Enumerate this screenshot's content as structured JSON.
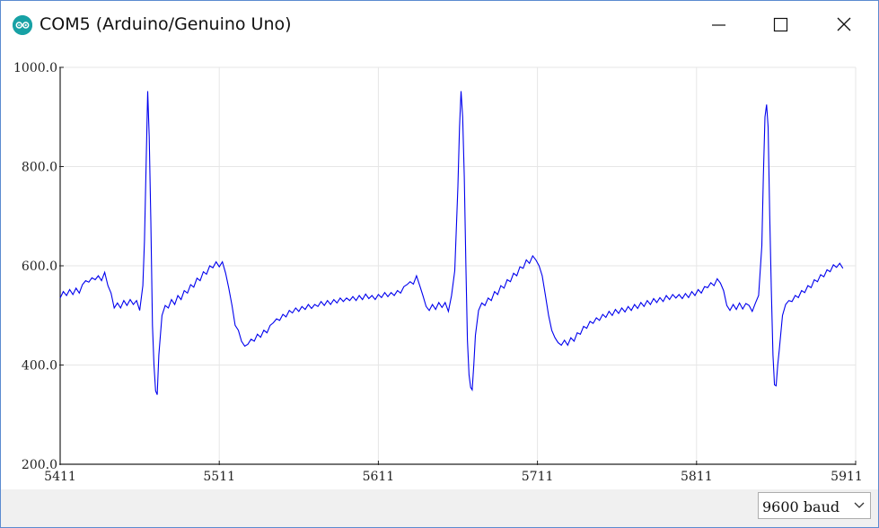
{
  "window": {
    "title": "COM5 (Arduino/Genuino Uno)",
    "icon": "arduino-logo-icon",
    "controls": [
      "minimize-icon",
      "maximize-icon",
      "close-icon"
    ]
  },
  "footer": {
    "baud_selected": "9600 baud"
  },
  "colors": {
    "series": "#0000ee",
    "grid": "#e6e6e6",
    "axis": "#222222",
    "app_icon": "#17a1a5"
  },
  "chart_data": {
    "type": "line",
    "title": "",
    "xlabel": "",
    "ylabel": "",
    "xlim": [
      5411,
      5911
    ],
    "ylim": [
      200,
      1000
    ],
    "y_ticks": [
      "1000.0",
      "800.0",
      "600.0",
      "400.0",
      "200.0"
    ],
    "x_ticks": [
      "5411",
      "5511",
      "5611",
      "5711",
      "5811",
      "5911"
    ],
    "grid": true,
    "series": [
      {
        "color": "#0000ee",
        "points": [
          [
            5411,
            535
          ],
          [
            5413,
            548
          ],
          [
            5415,
            540
          ],
          [
            5417,
            552
          ],
          [
            5419,
            542
          ],
          [
            5421,
            555
          ],
          [
            5423,
            545
          ],
          [
            5425,
            562
          ],
          [
            5427,
            570
          ],
          [
            5429,
            567
          ],
          [
            5431,
            576
          ],
          [
            5433,
            572
          ],
          [
            5435,
            580
          ],
          [
            5437,
            570
          ],
          [
            5439,
            587
          ],
          [
            5441,
            560
          ],
          [
            5443,
            545
          ],
          [
            5445,
            515
          ],
          [
            5447,
            525
          ],
          [
            5449,
            515
          ],
          [
            5451,
            530
          ],
          [
            5453,
            520
          ],
          [
            5455,
            532
          ],
          [
            5457,
            522
          ],
          [
            5459,
            530
          ],
          [
            5461,
            510
          ],
          [
            5463,
            560
          ],
          [
            5464,
            650
          ],
          [
            5465,
            800
          ],
          [
            5466,
            952
          ],
          [
            5467,
            860
          ],
          [
            5468,
            690
          ],
          [
            5469,
            480
          ],
          [
            5470,
            400
          ],
          [
            5471,
            348
          ],
          [
            5472,
            340
          ],
          [
            5473,
            420
          ],
          [
            5475,
            500
          ],
          [
            5477,
            520
          ],
          [
            5479,
            515
          ],
          [
            5481,
            532
          ],
          [
            5483,
            522
          ],
          [
            5485,
            540
          ],
          [
            5487,
            532
          ],
          [
            5489,
            550
          ],
          [
            5491,
            545
          ],
          [
            5493,
            562
          ],
          [
            5495,
            557
          ],
          [
            5497,
            575
          ],
          [
            5499,
            570
          ],
          [
            5501,
            588
          ],
          [
            5503,
            583
          ],
          [
            5505,
            600
          ],
          [
            5507,
            596
          ],
          [
            5509,
            608
          ],
          [
            5511,
            598
          ],
          [
            5513,
            608
          ],
          [
            5515,
            585
          ],
          [
            5517,
            555
          ],
          [
            5519,
            520
          ],
          [
            5521,
            480
          ],
          [
            5523,
            470
          ],
          [
            5525,
            448
          ],
          [
            5527,
            438
          ],
          [
            5529,
            442
          ],
          [
            5531,
            452
          ],
          [
            5533,
            448
          ],
          [
            5535,
            462
          ],
          [
            5537,
            456
          ],
          [
            5539,
            470
          ],
          [
            5541,
            465
          ],
          [
            5543,
            480
          ],
          [
            5545,
            485
          ],
          [
            5547,
            493
          ],
          [
            5549,
            490
          ],
          [
            5551,
            502
          ],
          [
            5553,
            497
          ],
          [
            5555,
            510
          ],
          [
            5557,
            505
          ],
          [
            5559,
            515
          ],
          [
            5561,
            508
          ],
          [
            5563,
            518
          ],
          [
            5565,
            512
          ],
          [
            5567,
            522
          ],
          [
            5569,
            514
          ],
          [
            5571,
            522
          ],
          [
            5573,
            518
          ],
          [
            5575,
            528
          ],
          [
            5577,
            520
          ],
          [
            5579,
            530
          ],
          [
            5581,
            522
          ],
          [
            5583,
            532
          ],
          [
            5585,
            525
          ],
          [
            5587,
            535
          ],
          [
            5589,
            528
          ],
          [
            5591,
            535
          ],
          [
            5593,
            530
          ],
          [
            5595,
            538
          ],
          [
            5597,
            530
          ],
          [
            5599,
            540
          ],
          [
            5601,
            532
          ],
          [
            5603,
            543
          ],
          [
            5605,
            534
          ],
          [
            5607,
            540
          ],
          [
            5609,
            532
          ],
          [
            5611,
            542
          ],
          [
            5613,
            536
          ],
          [
            5615,
            546
          ],
          [
            5617,
            538
          ],
          [
            5619,
            546
          ],
          [
            5621,
            540
          ],
          [
            5623,
            550
          ],
          [
            5625,
            545
          ],
          [
            5627,
            558
          ],
          [
            5629,
            562
          ],
          [
            5631,
            568
          ],
          [
            5633,
            563
          ],
          [
            5635,
            580
          ],
          [
            5637,
            560
          ],
          [
            5639,
            540
          ],
          [
            5641,
            518
          ],
          [
            5643,
            510
          ],
          [
            5645,
            522
          ],
          [
            5647,
            512
          ],
          [
            5649,
            526
          ],
          [
            5651,
            516
          ],
          [
            5653,
            526
          ],
          [
            5655,
            508
          ],
          [
            5657,
            540
          ],
          [
            5659,
            590
          ],
          [
            5661,
            760
          ],
          [
            5662,
            880
          ],
          [
            5663,
            952
          ],
          [
            5664,
            900
          ],
          [
            5665,
            780
          ],
          [
            5666,
            600
          ],
          [
            5667,
            450
          ],
          [
            5668,
            380
          ],
          [
            5669,
            355
          ],
          [
            5670,
            350
          ],
          [
            5671,
            400
          ],
          [
            5672,
            460
          ],
          [
            5674,
            510
          ],
          [
            5676,
            525
          ],
          [
            5678,
            520
          ],
          [
            5680,
            535
          ],
          [
            5682,
            530
          ],
          [
            5684,
            548
          ],
          [
            5686,
            542
          ],
          [
            5688,
            560
          ],
          [
            5690,
            555
          ],
          [
            5692,
            572
          ],
          [
            5694,
            568
          ],
          [
            5696,
            585
          ],
          [
            5698,
            580
          ],
          [
            5700,
            598
          ],
          [
            5702,
            595
          ],
          [
            5704,
            612
          ],
          [
            5706,
            605
          ],
          [
            5708,
            620
          ],
          [
            5710,
            612
          ],
          [
            5712,
            600
          ],
          [
            5714,
            580
          ],
          [
            5716,
            540
          ],
          [
            5718,
            500
          ],
          [
            5720,
            470
          ],
          [
            5722,
            455
          ],
          [
            5724,
            445
          ],
          [
            5726,
            440
          ],
          [
            5728,
            450
          ],
          [
            5730,
            440
          ],
          [
            5732,
            455
          ],
          [
            5734,
            448
          ],
          [
            5736,
            465
          ],
          [
            5738,
            462
          ],
          [
            5740,
            478
          ],
          [
            5742,
            474
          ],
          [
            5744,
            488
          ],
          [
            5746,
            484
          ],
          [
            5748,
            495
          ],
          [
            5750,
            490
          ],
          [
            5752,
            502
          ],
          [
            5754,
            496
          ],
          [
            5756,
            508
          ],
          [
            5758,
            500
          ],
          [
            5760,
            512
          ],
          [
            5762,
            504
          ],
          [
            5764,
            515
          ],
          [
            5766,
            507
          ],
          [
            5768,
            518
          ],
          [
            5770,
            510
          ],
          [
            5772,
            522
          ],
          [
            5774,
            514
          ],
          [
            5776,
            526
          ],
          [
            5778,
            518
          ],
          [
            5780,
            530
          ],
          [
            5782,
            522
          ],
          [
            5784,
            534
          ],
          [
            5786,
            526
          ],
          [
            5788,
            536
          ],
          [
            5790,
            528
          ],
          [
            5792,
            540
          ],
          [
            5794,
            532
          ],
          [
            5796,
            542
          ],
          [
            5798,
            535
          ],
          [
            5800,
            542
          ],
          [
            5802,
            534
          ],
          [
            5804,
            544
          ],
          [
            5806,
            536
          ],
          [
            5808,
            548
          ],
          [
            5810,
            540
          ],
          [
            5812,
            552
          ],
          [
            5814,
            545
          ],
          [
            5816,
            558
          ],
          [
            5818,
            556
          ],
          [
            5820,
            566
          ],
          [
            5822,
            560
          ],
          [
            5824,
            574
          ],
          [
            5826,
            565
          ],
          [
            5828,
            550
          ],
          [
            5830,
            520
          ],
          [
            5832,
            510
          ],
          [
            5834,
            522
          ],
          [
            5836,
            512
          ],
          [
            5838,
            525
          ],
          [
            5840,
            513
          ],
          [
            5842,
            524
          ],
          [
            5844,
            520
          ],
          [
            5846,
            508
          ],
          [
            5848,
            525
          ],
          [
            5850,
            540
          ],
          [
            5852,
            640
          ],
          [
            5853,
            780
          ],
          [
            5854,
            900
          ],
          [
            5855,
            925
          ],
          [
            5856,
            880
          ],
          [
            5857,
            700
          ],
          [
            5858,
            550
          ],
          [
            5859,
            420
          ],
          [
            5860,
            360
          ],
          [
            5861,
            358
          ],
          [
            5862,
            400
          ],
          [
            5863,
            430
          ],
          [
            5865,
            500
          ],
          [
            5867,
            522
          ],
          [
            5869,
            530
          ],
          [
            5871,
            528
          ],
          [
            5873,
            540
          ],
          [
            5875,
            536
          ],
          [
            5877,
            550
          ],
          [
            5879,
            546
          ],
          [
            5881,
            560
          ],
          [
            5883,
            556
          ],
          [
            5885,
            572
          ],
          [
            5887,
            568
          ],
          [
            5889,
            582
          ],
          [
            5891,
            578
          ],
          [
            5893,
            592
          ],
          [
            5895,
            588
          ],
          [
            5897,
            602
          ],
          [
            5899,
            597
          ],
          [
            5901,
            605
          ],
          [
            5903,
            595
          ]
        ]
      }
    ]
  }
}
